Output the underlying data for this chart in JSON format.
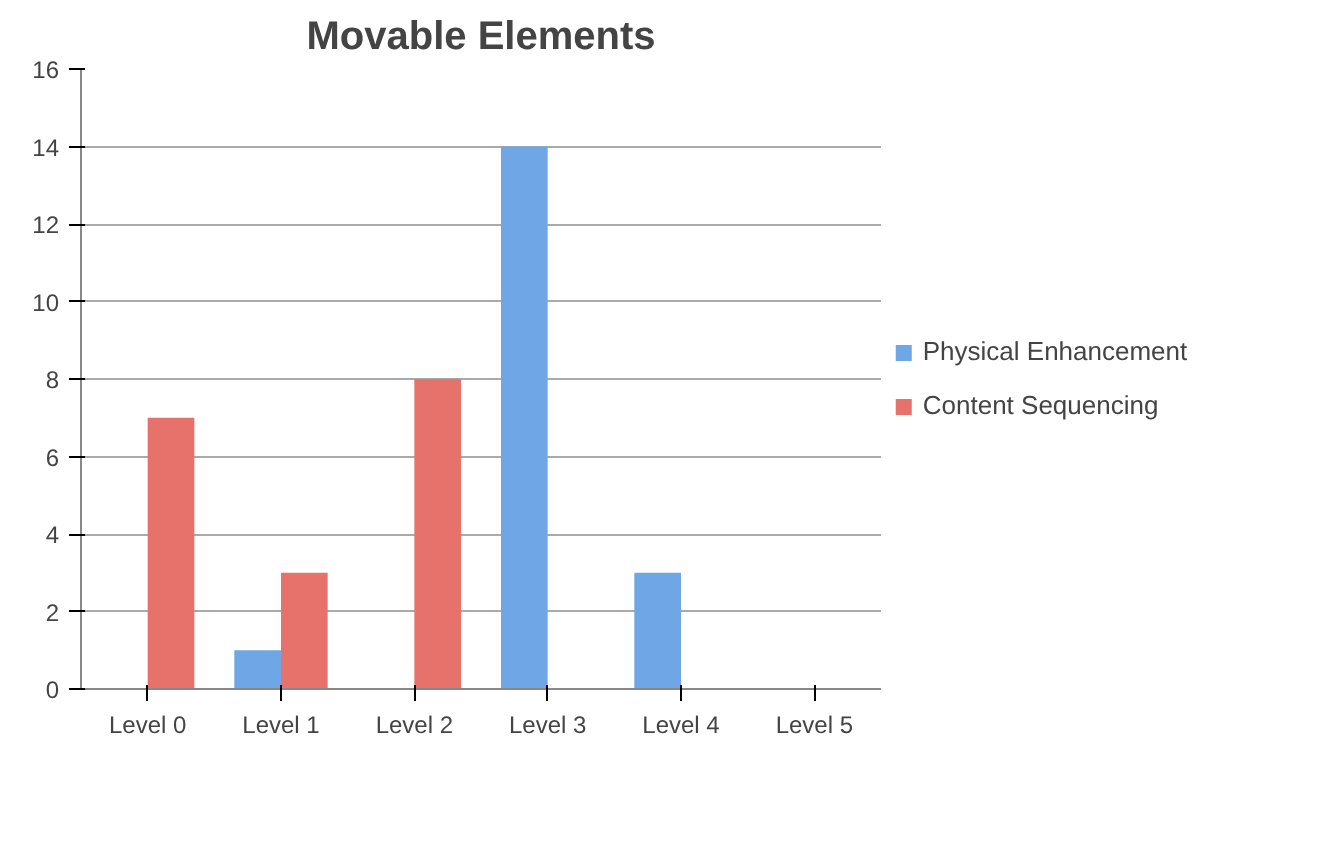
{
  "chart_data": {
    "type": "bar",
    "title": "Movable Elements",
    "categories": [
      "Level 0",
      "Level 1",
      "Level 2",
      "Level 3",
      "Level 4",
      "Level 5"
    ],
    "series": [
      {
        "name": "Physical Enhancement",
        "color": "#6ea6e6",
        "values": [
          0,
          1,
          0,
          14,
          3,
          0
        ]
      },
      {
        "name": "Content Sequencing",
        "color": "#e7726c",
        "values": [
          7,
          3,
          8,
          0,
          0,
          0
        ]
      }
    ],
    "ylim": [
      0,
      16
    ],
    "yticks": [
      0,
      2,
      4,
      6,
      8,
      10,
      12,
      14,
      16
    ],
    "grid": "y",
    "legend": "right"
  }
}
